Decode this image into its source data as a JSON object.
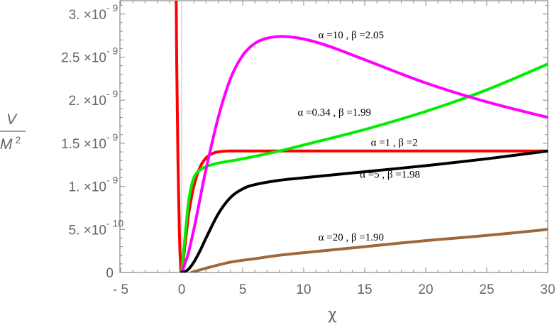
{
  "chart_data": {
    "type": "line",
    "title": "",
    "xlabel": "χ",
    "ylabel": "V / M^2",
    "ylabel_num": "V",
    "ylabel_den": "M",
    "ylabel_den_exp": "2",
    "xlim": [
      -5.5,
      30
    ],
    "ylim": [
      0,
      3.15e-09
    ],
    "grid": false,
    "legend": "inline annotations",
    "x_ticks": [
      -5,
      0,
      5,
      10,
      15,
      20,
      25,
      30
    ],
    "x_tick_labels": [
      "- 5",
      "0",
      "5",
      "10",
      "15",
      "20",
      "25",
      "30"
    ],
    "y_ticks": [
      0,
      5e-10,
      1e-09,
      1.5e-09,
      2e-09,
      2.5e-09,
      3e-09
    ],
    "y_tick_labels": [
      {
        "mant": "0",
        "exp": ""
      },
      {
        "mant": "5. ×10",
        "exp": "- 10"
      },
      {
        "mant": "1. ×10",
        "exp": "- 9"
      },
      {
        "mant": "1.5 ×10",
        "exp": "- 9"
      },
      {
        "mant": "2. ×10",
        "exp": "- 9"
      },
      {
        "mant": "2.5 ×10",
        "exp": "- 9"
      },
      {
        "mant": "3. ×10",
        "exp": "- 9"
      }
    ],
    "series": [
      {
        "name": "α =1 , β =2",
        "color": "#ff0000",
        "x": [
          -0.45,
          -0.4,
          -0.3,
          -0.2,
          -0.1,
          0,
          0.3,
          0.6,
          1.0,
          1.5,
          2.0,
          2.5,
          3.0,
          4,
          6,
          10,
          15,
          20,
          25,
          30
        ],
        "y": [
          3.2e-09,
          2.4e-09,
          1.3e-09,
          5.5e-10,
          1.2e-10,
          0,
          3.5e-10,
          7e-10,
          1e-09,
          1.22e-09,
          1.33e-09,
          1.38e-09,
          1.4e-09,
          1.41e-09,
          1.41e-09,
          1.41e-09,
          1.41e-09,
          1.41e-09,
          1.41e-09,
          1.41e-09
        ]
      },
      {
        "name": "α =0.34 , β =1.99",
        "color": "#00ee00",
        "x": [
          0,
          0.3,
          0.6,
          1.0,
          1.5,
          2.0,
          3,
          5,
          8,
          10,
          15,
          20,
          25,
          30
        ],
        "y": [
          0,
          4.5e-10,
          8.5e-10,
          1.1e-09,
          1.19e-09,
          1.23e-09,
          1.27e-09,
          1.32e-09,
          1.41e-09,
          1.48e-09,
          1.66e-09,
          1.87e-09,
          2.12e-09,
          2.42e-09
        ]
      },
      {
        "name": "α =10 , β =2.05",
        "color": "#ff00ff",
        "x": [
          0,
          0.5,
          1.0,
          1.5,
          2,
          3,
          4,
          5,
          6,
          7,
          8.3,
          10,
          12,
          15,
          20,
          25,
          30
        ],
        "y": [
          0,
          2e-10,
          5e-10,
          8.5e-10,
          1.2e-09,
          1.8e-09,
          2.25e-09,
          2.52e-09,
          2.66e-09,
          2.72e-09,
          2.74e-09,
          2.71e-09,
          2.63e-09,
          2.47e-09,
          2.2e-09,
          1.98e-09,
          1.8e-09
        ]
      },
      {
        "name": "α =5 , β =1.98",
        "color": "#000000",
        "x": [
          0,
          0.5,
          1,
          1.5,
          2,
          3,
          4,
          5,
          6,
          8,
          10,
          15,
          20,
          25,
          30
        ],
        "y": [
          0,
          3e-11,
          1.2e-10,
          2.5e-10,
          4e-10,
          6.8e-10,
          8.7e-10,
          9.7e-10,
          1.02e-09,
          1.07e-09,
          1.1e-09,
          1.17e-09,
          1.24e-09,
          1.32e-09,
          1.41e-09
        ]
      },
      {
        "name": "α =20 , β =1.90",
        "color": "#a0683a",
        "x": [
          0.8,
          2,
          4,
          6,
          8,
          10,
          15,
          20,
          25,
          30
        ],
        "y": [
          0,
          5e-11,
          1.2e-10,
          1.6e-10,
          2e-10,
          2.3e-10,
          3e-10,
          3.7e-10,
          4.3e-10,
          5e-10
        ]
      }
    ],
    "annotations": [
      {
        "text": "α =10 , β =2.05",
        "x": 11.2,
        "y": 2.72e-09
      },
      {
        "text": "α =0.34 , β =1.99",
        "x": 9.5,
        "y": 1.82e-09
      },
      {
        "text": "α =1 , β =2",
        "x": 15.5,
        "y": 1.47e-09
      },
      {
        "text": "α =5 , β =1.98",
        "x": 14.6,
        "y": 1.1e-09
      },
      {
        "text": "α =20 , β =1.90",
        "x": 11.2,
        "y": 3.7e-10
      }
    ]
  }
}
